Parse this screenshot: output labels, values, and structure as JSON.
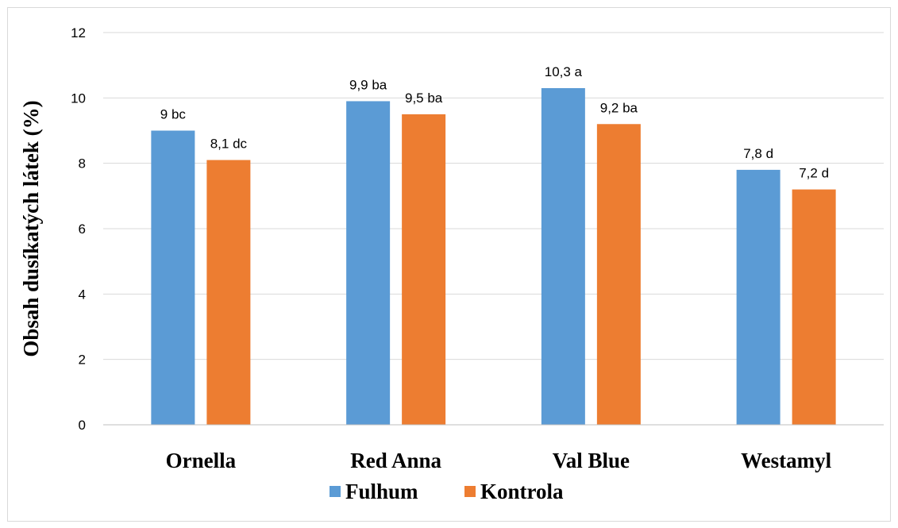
{
  "chart_data": {
    "type": "bar",
    "categories": [
      "Ornella",
      "Red Anna",
      "Val Blue",
      "Westamyl"
    ],
    "series": [
      {
        "name": "Fulhum",
        "color": "#5b9bd5",
        "values": [
          9.0,
          9.9,
          10.3,
          7.8
        ],
        "labels": [
          "9 bc",
          "9,9 ba",
          "10,3 a",
          "7,8 d"
        ]
      },
      {
        "name": "Kontrola",
        "color": "#ed7d31",
        "values": [
          8.1,
          9.5,
          9.2,
          7.2
        ],
        "labels": [
          "8,1 dc",
          "9,5 ba",
          "9,2 ba",
          "7,2 d"
        ]
      }
    ],
    "ylabel": "Obsah dusíkatých látek (%)",
    "xlabel": "",
    "ylim": [
      0,
      12
    ],
    "yticks": [
      0,
      2,
      4,
      6,
      8,
      10,
      12
    ],
    "grid": true,
    "legend": "bottom"
  }
}
